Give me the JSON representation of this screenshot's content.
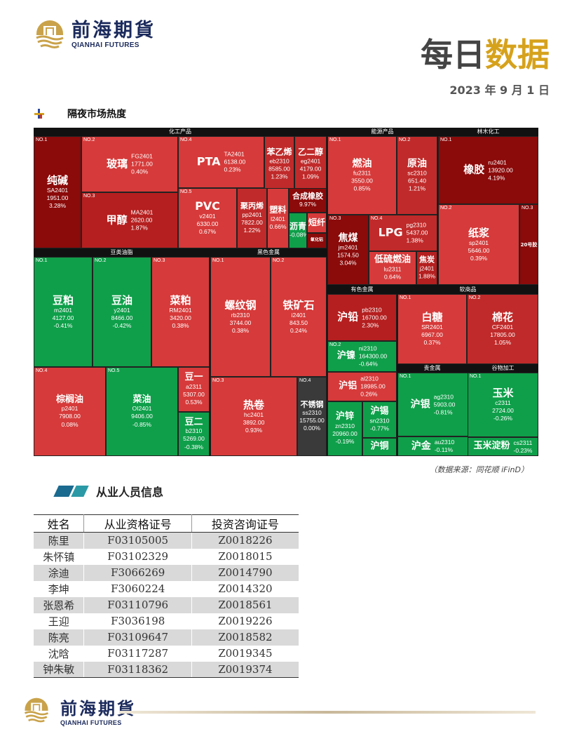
{
  "header": {
    "brand_cn": "前海期貨",
    "brand_en": "QIANHAI FUTURES",
    "title_part1": "每日",
    "title_part2": "数据",
    "date": "2023 年 9 月 1 日"
  },
  "section1": {
    "title": "隔夜市场热度"
  },
  "colors": {
    "up_strong": "#8b0a0a",
    "up": "#d63a3a",
    "down": "#0f9f4a",
    "flat": "#3a3a3a",
    "accent": "#d6a21c"
  },
  "treemap": {
    "groups": [
      {
        "name": "化工产品"
      },
      {
        "name": "能源产品"
      },
      {
        "name": "林木化工"
      },
      {
        "name": "豆类油脂"
      },
      {
        "name": "黑色金属"
      },
      {
        "name": "有色金属"
      },
      {
        "name": "软商品"
      },
      {
        "name": "贵金属"
      },
      {
        "name": "谷物加工"
      }
    ],
    "cells": [
      {
        "no": "NO.1",
        "name": "纯碱",
        "code": "SA2401",
        "price": "1951.00",
        "chg": "3.28%",
        "color": "#8b0a0a"
      },
      {
        "no": "NO.2",
        "name": "玻璃",
        "code": "FG2401",
        "price": "1771.00",
        "chg": "0.40%",
        "color": "#d63a3a"
      },
      {
        "no": "NO.3",
        "name": "甲醇",
        "code": "MA2401",
        "price": "2620.00",
        "chg": "1.87%",
        "color": "#b51f1f"
      },
      {
        "no": "NO.4",
        "name": "PTA",
        "code": "TA2401",
        "price": "6138.00",
        "chg": "0.23%",
        "color": "#d63a3a"
      },
      {
        "no": "NO.5",
        "name": "PVC",
        "code": "v2401",
        "price": "6330.00",
        "chg": "0.67%",
        "color": "#d63a3a"
      },
      {
        "no": "",
        "name": "苯乙烯",
        "code": "eb2310",
        "price": "8585.00",
        "chg": "1.23%",
        "color": "#c02a2a"
      },
      {
        "no": "",
        "name": "乙二醇",
        "code": "eg2401",
        "price": "4179.00",
        "chg": "1.09%",
        "color": "#c02a2a"
      },
      {
        "no": "",
        "name": "聚丙烯",
        "code": "pp2401",
        "price": "7822.00",
        "chg": "1.22%",
        "color": "#c02a2a"
      },
      {
        "no": "",
        "name": "塑料",
        "code": "l2401",
        "price": "",
        "chg": "0.66%",
        "color": "#d63a3a"
      },
      {
        "no": "",
        "name": "合成橡胶",
        "code": "",
        "price": "",
        "chg": "9.97%",
        "color": "#8b0a0a"
      },
      {
        "no": "",
        "name": "沥青",
        "code": "",
        "price": "",
        "chg": "-0.08%",
        "color": "#0f9f4a"
      },
      {
        "no": "",
        "name": "短纤",
        "code": "",
        "price": "",
        "chg": "",
        "color": "#d63a3a"
      },
      {
        "no": "",
        "name": "氧化铝",
        "code": "",
        "price": "",
        "chg": "",
        "color": "#8b0a0a"
      },
      {
        "no": "NO.1",
        "name": "燃油",
        "code": "fu2311",
        "price": "3550.00",
        "chg": "0.85%",
        "color": "#d63a3a"
      },
      {
        "no": "NO.2",
        "name": "原油",
        "code": "sc2310",
        "price": "651.40",
        "chg": "1.21%",
        "color": "#c02a2a"
      },
      {
        "no": "NO.3",
        "name": "焦煤",
        "code": "jm2401",
        "price": "1574.50",
        "chg": "3.04%",
        "color": "#8b0a0a"
      },
      {
        "no": "NO.4",
        "name": "LPG",
        "code": "pg2310",
        "price": "5437.00",
        "chg": "1.38%",
        "color": "#c02a2a"
      },
      {
        "no": "",
        "name": "低硫燃油",
        "code": "lu2311",
        "price": "",
        "chg": "0.64%",
        "color": "#d63a3a"
      },
      {
        "no": "",
        "name": "焦炭",
        "code": "j2401",
        "price": "",
        "chg": "1.88%",
        "color": "#b51f1f"
      },
      {
        "no": "NO.1",
        "name": "橡胶",
        "code": "ru2401",
        "price": "13920.00",
        "chg": "4.19%",
        "color": "#8b0a0a"
      },
      {
        "no": "NO.2",
        "name": "纸浆",
        "code": "sp2401",
        "price": "5646.00",
        "chg": "0.39%",
        "color": "#d63a3a"
      },
      {
        "no": "NO.3",
        "name": "20号胶",
        "code": "",
        "price": "",
        "chg": "",
        "color": "#8b0a0a"
      },
      {
        "no": "NO.1",
        "name": "豆粕",
        "code": "m2401",
        "price": "4127.00",
        "chg": "-0.41%",
        "color": "#0f9f4a"
      },
      {
        "no": "NO.2",
        "name": "豆油",
        "code": "y2401",
        "price": "8466.00",
        "chg": "-0.42%",
        "color": "#0f9f4a"
      },
      {
        "no": "NO.3",
        "name": "菜粕",
        "code": "RM2401",
        "price": "3420.00",
        "chg": "0.38%",
        "color": "#d63a3a"
      },
      {
        "no": "NO.4",
        "name": "棕榈油",
        "code": "p2401",
        "price": "7908.00",
        "chg": "0.08%",
        "color": "#d63a3a"
      },
      {
        "no": "NO.5",
        "name": "菜油",
        "code": "OI2401",
        "price": "9406.00",
        "chg": "-0.85%",
        "color": "#0f9f4a"
      },
      {
        "no": "",
        "name": "豆一",
        "code": "a2311",
        "price": "5307.00",
        "chg": "0.53%",
        "color": "#d63a3a"
      },
      {
        "no": "",
        "name": "豆二",
        "code": "b2310",
        "price": "5269.00",
        "chg": "-0.38%",
        "color": "#0f9f4a"
      },
      {
        "no": "NO.1",
        "name": "螺纹钢",
        "code": "rb2310",
        "price": "3744.00",
        "chg": "0.38%",
        "color": "#d63a3a"
      },
      {
        "no": "NO.2",
        "name": "铁矿石",
        "code": "i2401",
        "price": "843.50",
        "chg": "0.24%",
        "color": "#d63a3a"
      },
      {
        "no": "NO.3",
        "name": "热卷",
        "code": "hc2401",
        "price": "3892.00",
        "chg": "0.93%",
        "color": "#d63a3a"
      },
      {
        "no": "NO.4",
        "name": "不锈钢",
        "code": "ss2310",
        "price": "15755.00",
        "chg": "0.00%",
        "color": "#3a3a3a"
      },
      {
        "no": "",
        "name": "沪铅",
        "code": "pb2310",
        "price": "16700.00",
        "chg": "2.30%",
        "color": "#b51f1f"
      },
      {
        "no": "NO.2",
        "name": "沪镍",
        "code": "ni2310",
        "price": "164300.00",
        "chg": "-0.64%",
        "color": "#0f9f4a"
      },
      {
        "no": "",
        "name": "沪铝",
        "code": "al2310",
        "price": "18985.00",
        "chg": "0.26%",
        "color": "#d63a3a"
      },
      {
        "no": "",
        "name": "沪锌",
        "code": "zn2310",
        "price": "20960.00",
        "chg": "-0.19%",
        "color": "#0f9f4a"
      },
      {
        "no": "",
        "name": "沪锡",
        "code": "sn2310",
        "price": "",
        "chg": "-0.77%",
        "color": "#0f9f4a"
      },
      {
        "no": "",
        "name": "沪铜",
        "code": "",
        "price": "",
        "chg": "",
        "color": "#0f9f4a"
      },
      {
        "no": "NO.1",
        "name": "白糖",
        "code": "SR2401",
        "price": "6967.00",
        "chg": "0.37%",
        "color": "#d63a3a"
      },
      {
        "no": "NO.2",
        "name": "棉花",
        "code": "CF2401",
        "price": "17805.00",
        "chg": "1.05%",
        "color": "#c02a2a"
      },
      {
        "no": "NO.1",
        "name": "沪银",
        "code": "ag2310",
        "price": "5903.00",
        "chg": "-0.81%",
        "color": "#0f9f4a"
      },
      {
        "no": "",
        "name": "沪金",
        "code": "au2310",
        "price": "",
        "chg": "-0.11%",
        "color": "#0f9f4a"
      },
      {
        "no": "NO.1",
        "name": "玉米",
        "code": "c2311",
        "price": "2724.00",
        "chg": "-0.26%",
        "color": "#0f9f4a"
      },
      {
        "no": "",
        "name": "玉米淀粉",
        "code": "cs2311",
        "price": "",
        "chg": "-0.23%",
        "color": "#0f9f4a"
      }
    ]
  },
  "source_note": "（数据来源：同花顺 iFinD）",
  "section2": {
    "title": "从业人员信息"
  },
  "staff_table": {
    "headers": [
      "姓名",
      "从业资格证号",
      "投资咨询证号"
    ],
    "rows": [
      [
        "陈里",
        "F03105005",
        "Z0018226"
      ],
      [
        "朱怀镇",
        "F03102329",
        "Z0018015"
      ],
      [
        "涂迪",
        "F3066269",
        "Z0014790"
      ],
      [
        "李坤",
        "F3060224",
        "Z0014320"
      ],
      [
        "张恩希",
        "F03110796",
        "Z0018561"
      ],
      [
        "王迎",
        "F3036198",
        "Z0019226"
      ],
      [
        "陈亮",
        "F03109647",
        "Z0018582"
      ],
      [
        "沈晗",
        "F03117287",
        "Z0019345"
      ],
      [
        "钟朱敏",
        "F03118362",
        "Z0019374"
      ]
    ]
  }
}
